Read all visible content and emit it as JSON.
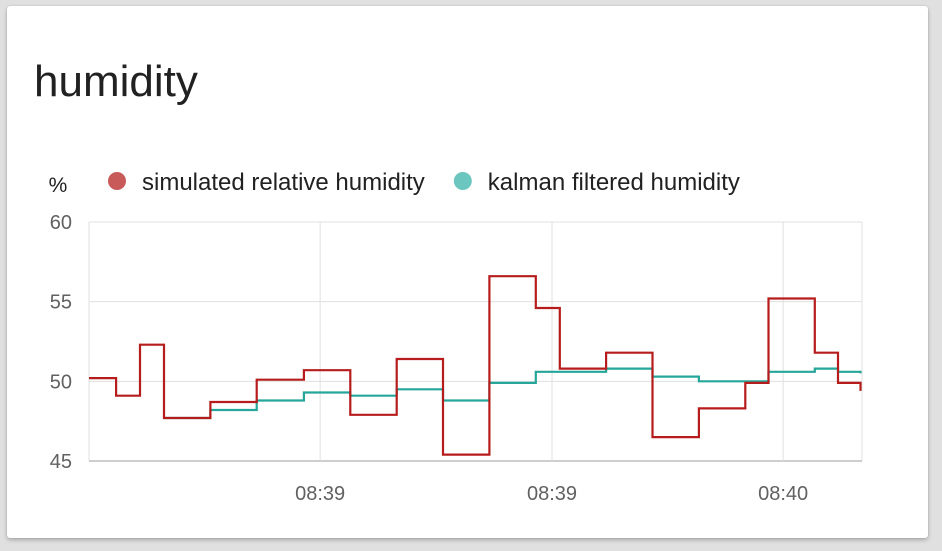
{
  "card": {
    "title": "humidity"
  },
  "chart_data": {
    "type": "line",
    "step": true,
    "unit": "%",
    "ylim": [
      45,
      60
    ],
    "y_ticks": [
      60,
      55,
      50,
      45
    ],
    "xlim": [
      0,
      100
    ],
    "x_ticks": [
      {
        "value": 29.9,
        "label": "08:39"
      },
      {
        "value": 59.9,
        "label": "08:39"
      },
      {
        "value": 89.8,
        "label": "08:40"
      }
    ],
    "grid": true,
    "legend_position": "top-left",
    "series": [
      {
        "name": "simulated relative humidity",
        "color": "#b71c1c",
        "legend_color": "#c85a5a",
        "points": [
          [
            0,
            50.2
          ],
          [
            3.5,
            49.1
          ],
          [
            6.6,
            52.3
          ],
          [
            9.7,
            47.7
          ],
          [
            15.7,
            48.7
          ],
          [
            21.7,
            50.1
          ],
          [
            27.8,
            50.7
          ],
          [
            33.8,
            47.9
          ],
          [
            39.8,
            51.4
          ],
          [
            45.8,
            45.4
          ],
          [
            51.8,
            56.6
          ],
          [
            57.8,
            54.6
          ],
          [
            60.9,
            50.8
          ],
          [
            66.9,
            51.8
          ],
          [
            72.9,
            46.5
          ],
          [
            78.9,
            48.3
          ],
          [
            84.9,
            49.9
          ],
          [
            87.9,
            55.2
          ],
          [
            93.9,
            51.8
          ],
          [
            96.9,
            49.9
          ],
          [
            99.8,
            49.4
          ]
        ]
      },
      {
        "name": "kalman filtered humidity",
        "color": "#26a69a",
        "legend_color": "#6cc6c0",
        "points": [
          [
            9.7,
            47.7
          ],
          [
            15.7,
            48.2
          ],
          [
            21.7,
            48.8
          ],
          [
            27.8,
            49.3
          ],
          [
            33.8,
            49.1
          ],
          [
            39.8,
            49.5
          ],
          [
            45.8,
            48.8
          ],
          [
            51.8,
            49.9
          ],
          [
            57.8,
            50.6
          ],
          [
            66.9,
            50.8
          ],
          [
            72.9,
            50.3
          ],
          [
            78.9,
            50.0
          ],
          [
            84.9,
            50.0
          ],
          [
            87.9,
            50.6
          ],
          [
            93.9,
            50.8
          ],
          [
            96.9,
            50.6
          ],
          [
            99.8,
            50.5
          ]
        ]
      }
    ]
  }
}
